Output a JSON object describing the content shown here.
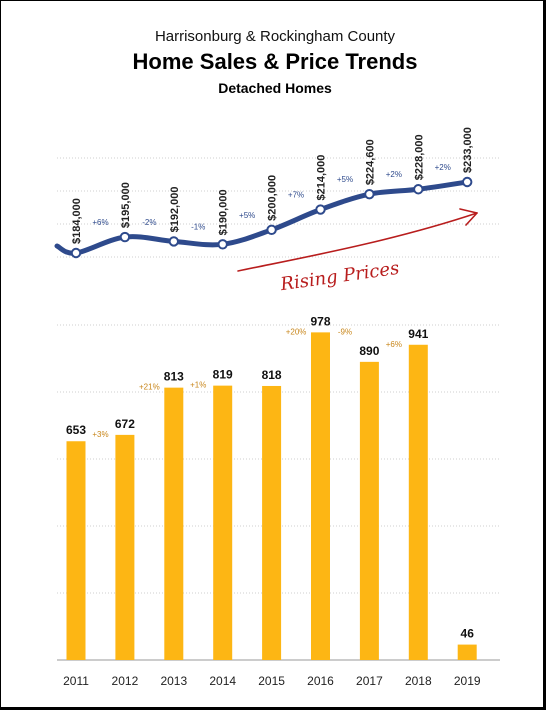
{
  "header": {
    "location": "Harrisonburg & Rockingham County",
    "title": "Home Sales & Price Trends",
    "subtitle": "Detached Homes"
  },
  "annotation": "Rising Prices",
  "colors": {
    "price_line": "#2e4a8c",
    "bar": "#fdb614",
    "bar_change": "#c8861a",
    "arrow": "#b81d1d",
    "grid": "#cfcfcf"
  },
  "chart_data": [
    {
      "type": "line",
      "name": "median-price",
      "categories": [
        "2011",
        "2012",
        "2013",
        "2014",
        "2015",
        "2016",
        "2017",
        "2018",
        "2019"
      ],
      "values": [
        184000,
        195000,
        192000,
        190000,
        200000,
        214000,
        224600,
        228000,
        233000
      ],
      "value_labels": [
        "$184,000",
        "$195,000",
        "$192,000",
        "$190,000",
        "$200,000",
        "$214,000",
        "$224,600",
        "$228,000",
        "$233,000"
      ],
      "change_labels": [
        "+6%",
        "-2%",
        "-1%",
        "+5%",
        "+7%",
        "+5%",
        "+2%",
        "+2%"
      ]
    },
    {
      "type": "bar",
      "name": "home-sales",
      "categories": [
        "2011",
        "2012",
        "2013",
        "2014",
        "2015",
        "2016",
        "2017",
        "2018",
        "2019"
      ],
      "values": [
        653,
        672,
        813,
        819,
        818,
        978,
        890,
        941,
        46
      ],
      "change_labels": [
        "+3%",
        "+21%",
        "+1%",
        "+20%",
        "-9%",
        "+6%"
      ],
      "ylim": [
        0,
        1000
      ],
      "grid": true
    }
  ]
}
